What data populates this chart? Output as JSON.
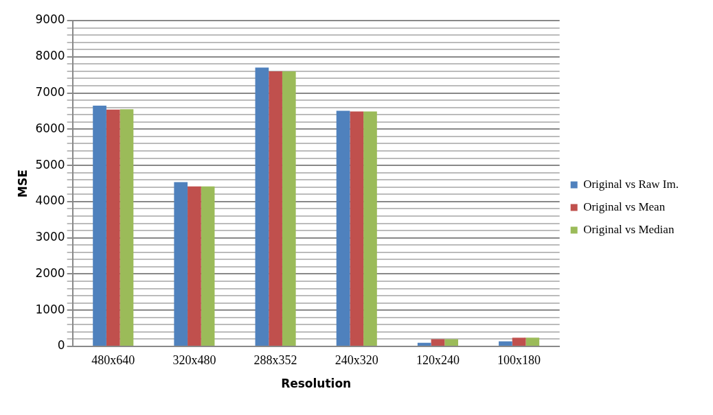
{
  "chart_data": {
    "type": "bar",
    "xlabel": "Resolution",
    "ylabel": "MSE",
    "categories": [
      "480x640",
      "320x480",
      "288x352",
      "240x320",
      "120x240",
      "100x180"
    ],
    "series": [
      {
        "name": "Original vs Raw Im.",
        "color": "#4f81bd",
        "values": [
          6650,
          4540,
          7700,
          6510,
          100,
          140
        ]
      },
      {
        "name": "Original vs Mean",
        "color": "#c0504d",
        "values": [
          6540,
          4420,
          7600,
          6490,
          200,
          240
        ]
      },
      {
        "name": "Original vs Median",
        "color": "#9bbb59",
        "values": [
          6550,
          4420,
          7600,
          6490,
          200,
          240
        ]
      }
    ],
    "ylim": [
      0,
      9000
    ],
    "yticks": [
      0,
      {
        "value": 200,
        "label": null
      },
      {
        "value": 400,
        "label": null
      },
      {
        "value": 600,
        "label": null
      },
      {
        "value": 800,
        "label": null
      },
      1000,
      {
        "value": 1200,
        "label": null
      },
      {
        "value": 1400,
        "label": null
      },
      {
        "value": 1600,
        "label": null
      },
      {
        "value": 1800,
        "label": null
      },
      2000,
      {
        "value": 2200,
        "label": null
      },
      {
        "value": 2400,
        "label": null
      },
      {
        "value": 2600,
        "label": null
      },
      {
        "value": 2800,
        "label": null
      },
      3000,
      {
        "value": 3200,
        "label": null
      },
      {
        "value": 3400,
        "label": null
      },
      {
        "value": 3600,
        "label": null
      },
      {
        "value": 3800,
        "label": null
      },
      4000,
      {
        "value": 4200,
        "label": null
      },
      {
        "value": 4400,
        "label": null
      },
      {
        "value": 4600,
        "label": null
      },
      {
        "value": 4800,
        "label": null
      },
      5000,
      {
        "value": 5200,
        "label": null
      },
      {
        "value": 5400,
        "label": null
      },
      {
        "value": 5600,
        "label": null
      },
      {
        "value": 5800,
        "label": null
      },
      6000,
      {
        "value": 6200,
        "label": null
      },
      {
        "value": 6400,
        "label": null
      },
      {
        "value": 6600,
        "label": null
      },
      {
        "value": 6800,
        "label": null
      },
      7000,
      {
        "value": 7200,
        "label": null
      },
      {
        "value": 7400,
        "label": null
      },
      {
        "value": 7600,
        "label": null
      },
      {
        "value": 7800,
        "label": null
      },
      8000,
      {
        "value": 8200,
        "label": null
      },
      {
        "value": 8400,
        "label": null
      },
      {
        "value": 8600,
        "label": null
      },
      {
        "value": 8800,
        "label": null
      },
      9000
    ],
    "grid": "y",
    "legend": "right"
  }
}
